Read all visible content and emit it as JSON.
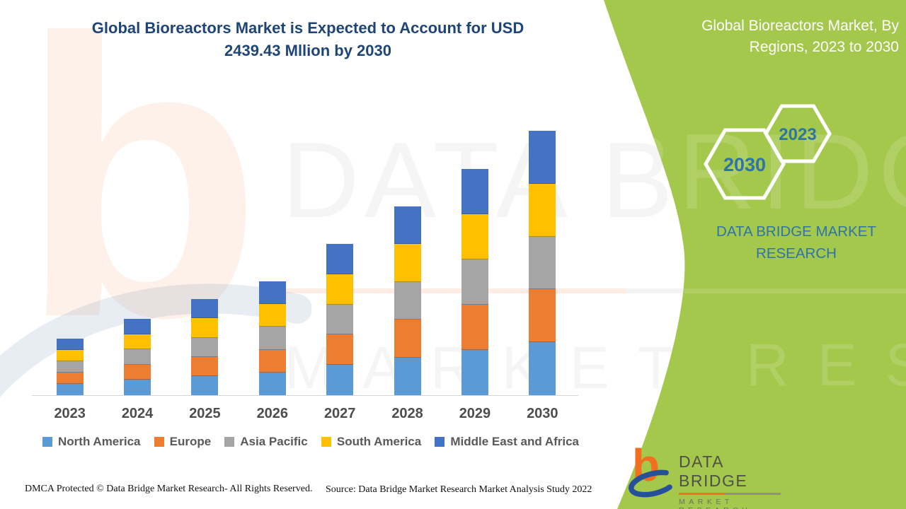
{
  "header": {
    "title": "Global Bioreactors Market is Expected to Account for USD 2439.43 Mllion by 2030"
  },
  "side_panel": {
    "title": "Global Bioreactors Market, By Regions, 2023 to 2030",
    "hexagons": [
      {
        "label": "2030"
      },
      {
        "label": "2023"
      }
    ],
    "brand": "DATA BRIDGE MARKET RESEARCH"
  },
  "chart_data": {
    "type": "bar",
    "stacked": true,
    "title": "Global Bioreactors Market, By Regions, 2023 to 2030",
    "unit": "USD Million",
    "categories": [
      "2023",
      "2024",
      "2025",
      "2026",
      "2027",
      "2028",
      "2029",
      "2030"
    ],
    "series": [
      {
        "name": "North America",
        "color": "#5B9BD5",
        "values": [
          104,
          141,
          177,
          210,
          279,
          348,
          417,
          488
        ]
      },
      {
        "name": "Europe",
        "color": "#ED7D31",
        "values": [
          104,
          141,
          177,
          210,
          279,
          348,
          418,
          488
        ]
      },
      {
        "name": "Asia Pacific",
        "color": "#A5A5A5",
        "values": [
          104,
          141,
          177,
          210,
          279,
          348,
          417,
          488
        ]
      },
      {
        "name": "South America",
        "color": "#FFC000",
        "values": [
          105,
          141,
          178,
          210,
          279,
          349,
          418,
          488
        ]
      },
      {
        "name": "Middle East and Africa",
        "color": "#4472C4",
        "values": [
          105,
          140,
          178,
          210,
          280,
          349,
          417,
          487.43
        ]
      }
    ],
    "totals_estimated_musd": [
      522,
      704,
      887,
      1050,
      1396,
      1742,
      2087,
      2439.43
    ],
    "yaxis": {
      "visible": false,
      "max_anchor_musd": 2439.43
    },
    "gridlines": false,
    "legend_position": "bottom"
  },
  "watermark": {
    "glyph": "b",
    "line1": "DATA BRIDGE",
    "line2": "MARKET RESEARCH"
  },
  "logo": {
    "glyph": "b",
    "name": "DATA BRIDGE",
    "subtitle": "MARKET RESEARCH"
  },
  "footer": {
    "left": "DMCA Protected © Data Bridge Market Research- All Rights Reserved.",
    "right": "Source: Data Bridge Market Research Market Analysis Study 2022"
  },
  "colors": {
    "green": "#A4C84C",
    "navy": "#1F4577",
    "accent_blue": "#2E74A9",
    "axis_text": "#4D4D4D",
    "legend_text": "#595959",
    "logo_orange": "#F26E21",
    "logo_blue": "#27509B"
  }
}
